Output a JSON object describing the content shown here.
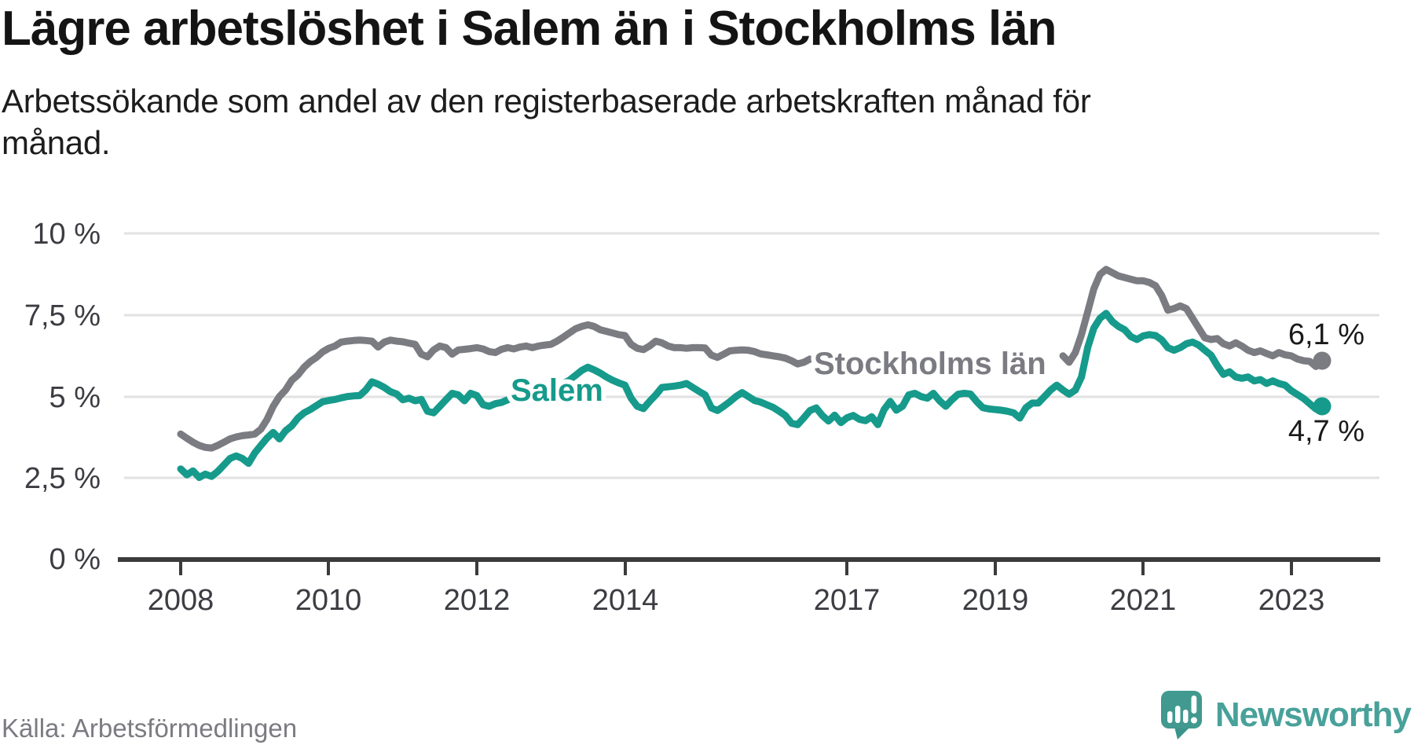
{
  "title": "Lägre arbetslöshet i Salem än i Stockholms län",
  "subtitle_lines": [
    "Arbetssökande som andel av den registerbaserade arbetskraften månad för",
    "månad."
  ],
  "footer": {
    "source": "Källa: Arbetsförmedlingen",
    "brand": "Newsworthy"
  },
  "colors": {
    "salem": "#169a8b",
    "stockholms_lan": "#7b7b82",
    "grid": "#e2e2e2",
    "axis": "#3b3b3b",
    "text_dark": "#1a1a1a",
    "muted_text": "#7b7b82",
    "brand_teal": "#48a19a"
  },
  "chart_data": {
    "type": "line",
    "unit": "%",
    "start": "2008-01",
    "end": "2023-06",
    "frequency": "monthly",
    "grid": true,
    "ylim": [
      0,
      10
    ],
    "y_ticks": [
      "10 %",
      "7,5 %",
      "5 %",
      "2,5 %",
      "0 %"
    ],
    "y_tick_values": [
      10,
      7.5,
      5,
      2.5,
      0
    ],
    "x_ticks": [
      "2008",
      "2010",
      "2012",
      "2014",
      "2017",
      "2019",
      "2021",
      "2023"
    ],
    "series": [
      {
        "name": "Stockholms län",
        "color": "#7b7b82",
        "end_label": "6,1 %",
        "end_value": 6.1,
        "label_gap": [
          103,
          142
        ],
        "values": [
          3.85,
          3.72,
          3.6,
          3.5,
          3.44,
          3.42,
          3.5,
          3.6,
          3.7,
          3.76,
          3.8,
          3.82,
          3.85,
          4.0,
          4.3,
          4.7,
          5.0,
          5.2,
          5.5,
          5.66,
          5.9,
          6.07,
          6.2,
          6.37,
          6.48,
          6.55,
          6.67,
          6.7,
          6.72,
          6.73,
          6.72,
          6.7,
          6.52,
          6.67,
          6.73,
          6.7,
          6.68,
          6.64,
          6.6,
          6.3,
          6.22,
          6.43,
          6.55,
          6.5,
          6.3,
          6.43,
          6.45,
          6.47,
          6.5,
          6.46,
          6.38,
          6.35,
          6.45,
          6.5,
          6.46,
          6.52,
          6.55,
          6.5,
          6.55,
          6.58,
          6.6,
          6.7,
          6.82,
          6.95,
          7.08,
          7.15,
          7.2,
          7.15,
          7.05,
          7.0,
          6.95,
          6.9,
          6.87,
          6.6,
          6.48,
          6.44,
          6.55,
          6.7,
          6.65,
          6.55,
          6.5,
          6.5,
          6.48,
          6.5,
          6.5,
          6.49,
          6.27,
          6.2,
          6.3,
          6.4,
          6.42,
          6.43,
          6.42,
          6.38,
          6.31,
          6.28,
          6.25,
          6.22,
          6.18,
          6.1,
          6.0,
          6.05,
          6.15,
          6.1,
          6.05,
          6.02,
          6.0,
          6.02,
          6.0,
          5.98,
          6.0,
          6.02,
          6.0,
          6.02,
          6.05,
          6.03,
          6.05,
          6.08,
          6.05,
          6.08,
          6.05,
          6.03,
          6.0,
          5.98,
          6.0,
          6.03,
          6.05,
          6.08,
          6.1,
          6.08,
          6.1,
          6.08,
          6.1,
          6.12,
          6.1,
          6.08,
          6.1,
          6.12,
          6.15,
          6.12,
          6.1,
          6.15,
          6.17,
          6.25,
          6.05,
          6.35,
          6.9,
          7.6,
          8.3,
          8.75,
          8.9,
          8.8,
          8.7,
          8.65,
          8.6,
          8.55,
          8.55,
          8.5,
          8.4,
          8.1,
          7.65,
          7.7,
          7.78,
          7.7,
          7.4,
          7.1,
          6.8,
          6.75,
          6.78,
          6.62,
          6.55,
          6.65,
          6.55,
          6.42,
          6.35,
          6.4,
          6.32,
          6.25,
          6.35,
          6.28,
          6.25,
          6.15,
          6.1,
          6.08,
          5.92,
          6.1
        ]
      },
      {
        "name": "Salem",
        "color": "#169a8b",
        "end_label": "4,7 %",
        "end_value": 4.7,
        "label_gap": null,
        "values": [
          2.78,
          2.6,
          2.72,
          2.52,
          2.62,
          2.55,
          2.7,
          2.9,
          3.1,
          3.18,
          3.1,
          2.95,
          3.27,
          3.5,
          3.73,
          3.9,
          3.7,
          3.95,
          4.1,
          4.34,
          4.5,
          4.6,
          4.72,
          4.84,
          4.88,
          4.91,
          4.96,
          5.0,
          5.02,
          5.03,
          5.2,
          5.45,
          5.38,
          5.28,
          5.15,
          5.08,
          4.9,
          4.95,
          4.87,
          4.91,
          4.55,
          4.5,
          4.7,
          4.9,
          5.1,
          5.05,
          4.87,
          5.1,
          5.03,
          4.75,
          4.7,
          4.78,
          4.82,
          4.9,
          4.95,
          5.0,
          5.08,
          5.05,
          5.1,
          5.15,
          5.2,
          5.3,
          5.4,
          5.5,
          5.65,
          5.8,
          5.9,
          5.82,
          5.72,
          5.6,
          5.5,
          5.42,
          5.35,
          4.95,
          4.7,
          4.63,
          4.85,
          5.05,
          5.28,
          5.3,
          5.32,
          5.35,
          5.4,
          5.28,
          5.16,
          5.05,
          4.65,
          4.57,
          4.7,
          4.84,
          5.0,
          5.12,
          5.0,
          4.88,
          4.83,
          4.75,
          4.67,
          4.55,
          4.42,
          4.18,
          4.14,
          4.35,
          4.57,
          4.65,
          4.42,
          4.25,
          4.43,
          4.2,
          4.35,
          4.42,
          4.3,
          4.26,
          4.38,
          4.14,
          4.6,
          4.85,
          4.58,
          4.7,
          5.05,
          5.1,
          5.0,
          4.95,
          5.1,
          4.87,
          4.7,
          4.9,
          5.07,
          5.1,
          5.08,
          4.85,
          4.66,
          4.62,
          4.6,
          4.58,
          4.55,
          4.5,
          4.34,
          4.66,
          4.8,
          4.8,
          5.0,
          5.2,
          5.35,
          5.2,
          5.07,
          5.2,
          5.6,
          6.5,
          7.1,
          7.4,
          7.55,
          7.3,
          7.15,
          7.05,
          6.84,
          6.75,
          6.86,
          6.9,
          6.87,
          6.74,
          6.5,
          6.42,
          6.5,
          6.62,
          6.67,
          6.58,
          6.42,
          6.27,
          5.95,
          5.68,
          5.76,
          5.6,
          5.56,
          5.6,
          5.48,
          5.52,
          5.4,
          5.48,
          5.4,
          5.35,
          5.18,
          5.06,
          4.94,
          4.78,
          4.62,
          4.7
        ]
      }
    ]
  }
}
